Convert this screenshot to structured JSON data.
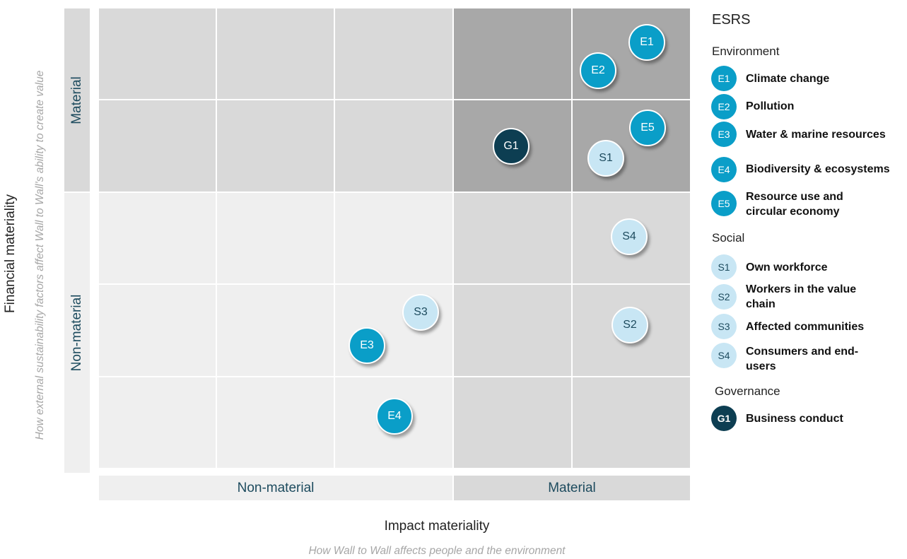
{
  "y_axis": {
    "title": "Financial materiality",
    "subtitle": "How external sustainability factors affect Wall to Wall's ability to create value",
    "top_label": "Material",
    "bottom_label": "Non-material"
  },
  "x_axis": {
    "title": "Impact materiality",
    "subtitle": "How Wall to Wall affects people and the environment",
    "left_label": "Non-material",
    "right_label": "Material"
  },
  "colors": {
    "environment": "#0a9ec8",
    "social": "#c8e6f4",
    "governance": "#0d3e52",
    "double_material": "#a8a8a8",
    "single_material": "#d7d7d7",
    "non_material": "#efefef",
    "axis_text": "#1d4b5e"
  },
  "plot_points": [
    {
      "code": "E1",
      "group": "env"
    },
    {
      "code": "E2",
      "group": "env"
    },
    {
      "code": "E5",
      "group": "env"
    },
    {
      "code": "G1",
      "group": "gov"
    },
    {
      "code": "S1",
      "group": "soc"
    },
    {
      "code": "S4",
      "group": "soc"
    },
    {
      "code": "S3",
      "group": "soc"
    },
    {
      "code": "S2",
      "group": "soc"
    },
    {
      "code": "E3",
      "group": "env"
    },
    {
      "code": "E4",
      "group": "env"
    }
  ],
  "legend": {
    "title": "ESRS",
    "environment": {
      "heading": "Environment",
      "items": [
        {
          "code": "E1",
          "label": "Climate change"
        },
        {
          "code": "E2",
          "label": "Pollution"
        },
        {
          "code": "E3",
          "label": "Water & marine resources"
        },
        {
          "code": "E4",
          "label": "Biodiversity & ecosystems"
        },
        {
          "code": "E5",
          "label": "Resource use and circular economy"
        }
      ]
    },
    "social": {
      "heading": "Social",
      "items": [
        {
          "code": "S1",
          "label": "Own workforce"
        },
        {
          "code": "S2",
          "label": "Workers in the value chain"
        },
        {
          "code": "S3",
          "label": "Affected communities"
        },
        {
          "code": "S4",
          "label": "Consumers and end-users"
        }
      ]
    },
    "governance": {
      "heading": "Governance",
      "items": [
        {
          "code": "G1",
          "label": "Business conduct"
        }
      ]
    }
  }
}
